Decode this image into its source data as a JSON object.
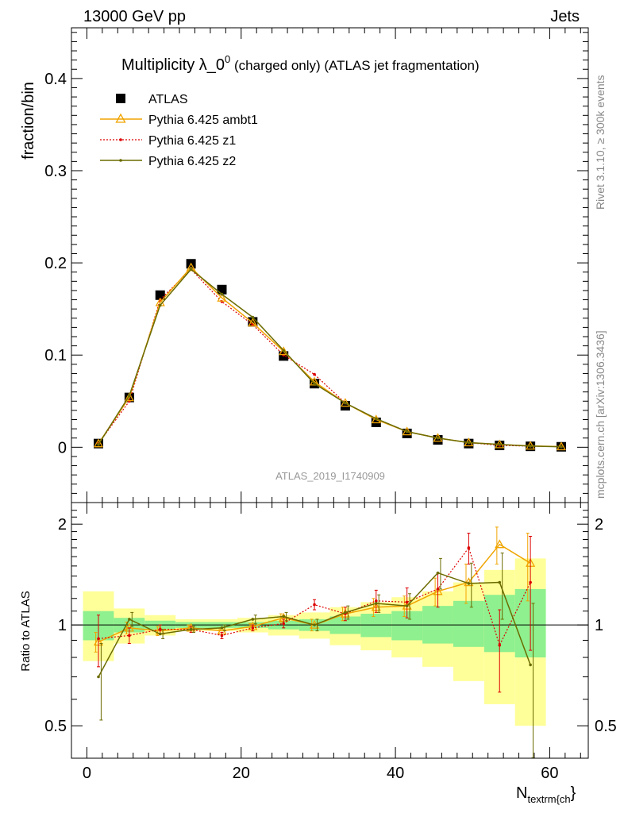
{
  "header": {
    "energy_label": "13000 GeV pp",
    "category_label": "Jets"
  },
  "side_labels": {
    "version": "Rivet 3.1.10, ≥ 300k events",
    "source": "mcplots.cern.ch [arXiv:1306.3436]"
  },
  "watermark": "ATLAS_2019_I1740909",
  "legend": {
    "atlas": "ATLAS",
    "ambt1": "Pythia 6.425 ambt1",
    "z1": "Pythia 6.425 z1",
    "z2": "Pythia 6.425 z2"
  },
  "colors": {
    "atlas": "#000000",
    "ambt1": "#f0a400",
    "z1": "#dd0000",
    "z2": "#6b6b00",
    "band_inner": "#8ef08e",
    "band_outer": "#ffff99"
  },
  "chart_data": [
    {
      "type": "line",
      "title_main": "Multiplicity λ_0",
      "title_sup": "0",
      "title_rest": " (charged only) (ATLAS jet fragmentation)",
      "ylabel": "fraction/bin",
      "xlim": [
        -2,
        65
      ],
      "ylim": [
        -0.06,
        0.455
      ],
      "yticks": [
        0,
        0.1,
        0.2,
        0.3,
        0.4
      ],
      "ytick_labels": [
        "0",
        "0.1",
        "0.2",
        "0.3",
        "0.4"
      ],
      "x": [
        1.5,
        5.5,
        9.5,
        13.5,
        17.5,
        21.5,
        25.5,
        29.5,
        33.5,
        37.5,
        41.5,
        45.5,
        49.5,
        53.5,
        57.5,
        61.5
      ],
      "series": [
        {
          "name": "ATLAS",
          "style": "markers",
          "values": [
            0.004,
            0.054,
            0.165,
            0.199,
            0.171,
            0.136,
            0.099,
            0.069,
            0.045,
            0.027,
            0.015,
            0.008,
            0.004,
            0.002,
            0.001,
            0.0005
          ]
        },
        {
          "name": "Pythia 6.425 ambt1",
          "style": "solid",
          "values": [
            0.004,
            0.054,
            0.157,
            0.195,
            0.162,
            0.135,
            0.104,
            0.071,
            0.048,
            0.03,
            0.017,
            0.01,
            0.005,
            0.003,
            0.0015,
            0.0007
          ]
        },
        {
          "name": "Pythia 6.425 z1",
          "style": "dotted",
          "values": [
            0.004,
            0.05,
            0.16,
            0.193,
            0.158,
            0.133,
            0.1,
            0.079,
            0.048,
            0.031,
            0.017,
            0.01,
            0.005,
            0.002,
            0.0012,
            0.0006
          ]
        },
        {
          "name": "Pythia 6.425 z2",
          "style": "solid",
          "values": [
            0.003,
            0.056,
            0.154,
            0.193,
            0.166,
            0.141,
            0.105,
            0.069,
            0.048,
            0.031,
            0.017,
            0.01,
            0.005,
            0.003,
            0.0012,
            0.0005
          ]
        }
      ]
    },
    {
      "type": "line",
      "ylabel": "Ratio to ATLAS",
      "xlabel_main": "N",
      "xlabel_sub": "textrm{ch",
      "xlabel_end": "}",
      "xlim": [
        -2,
        65
      ],
      "ylim": [
        0.4,
        2.32
      ],
      "xticks": [
        0,
        20,
        40,
        60
      ],
      "xtick_labels": [
        "0",
        "20",
        "40",
        "60"
      ],
      "yticks": [
        0.5,
        1,
        2
      ],
      "ytick_labels": [
        "0.5",
        "1",
        "2"
      ],
      "bin_edges": [
        -0.5,
        3.5,
        7.5,
        11.5,
        15.5,
        19.5,
        23.5,
        27.5,
        31.5,
        35.5,
        39.5,
        43.5,
        47.5,
        51.5,
        55.5,
        59.5
      ],
      "band_inner": [
        [
          0.9,
          1.1
        ],
        [
          0.95,
          1.05
        ],
        [
          0.97,
          1.03
        ],
        [
          0.98,
          1.02
        ],
        [
          0.98,
          1.02
        ],
        [
          0.98,
          1.02
        ],
        [
          0.97,
          1.03
        ],
        [
          0.96,
          1.04
        ],
        [
          0.94,
          1.06
        ],
        [
          0.92,
          1.08
        ],
        [
          0.9,
          1.1
        ],
        [
          0.88,
          1.14
        ],
        [
          0.86,
          1.18
        ],
        [
          0.83,
          1.23
        ],
        [
          0.8,
          1.28
        ]
      ],
      "band_outer": [
        [
          0.78,
          1.26
        ],
        [
          0.88,
          1.12
        ],
        [
          0.93,
          1.07
        ],
        [
          0.96,
          1.04
        ],
        [
          0.96,
          1.04
        ],
        [
          0.95,
          1.05
        ],
        [
          0.93,
          1.07
        ],
        [
          0.91,
          1.09
        ],
        [
          0.87,
          1.13
        ],
        [
          0.84,
          1.17
        ],
        [
          0.8,
          1.21
        ],
        [
          0.75,
          1.26
        ],
        [
          0.68,
          1.34
        ],
        [
          0.58,
          1.46
        ],
        [
          0.5,
          1.58
        ]
      ],
      "x": [
        1.5,
        5.5,
        9.5,
        13.5,
        17.5,
        21.5,
        25.5,
        29.5,
        33.5,
        37.5,
        41.5,
        45.5,
        49.5,
        53.5,
        57.5
      ],
      "series": [
        {
          "name": "Pythia 6.425 ambt1",
          "style": "solid",
          "values": [
            0.89,
            0.98,
            0.96,
            0.98,
            0.96,
            0.99,
            1.05,
            1.0,
            1.08,
            1.13,
            1.14,
            1.26,
            1.34,
            1.74,
            1.53
          ],
          "errors": [
            0.06,
            0.04,
            0.03,
            0.02,
            0.02,
            0.02,
            0.03,
            0.04,
            0.05,
            0.07,
            0.08,
            0.12,
            0.18,
            0.22,
            0.35
          ]
        },
        {
          "name": "Pythia 6.425 z1",
          "style": "dotted",
          "values": [
            0.91,
            0.93,
            0.97,
            0.97,
            0.93,
            0.98,
            1.01,
            1.15,
            1.08,
            1.18,
            1.17,
            1.28,
            1.7,
            0.87,
            1.34
          ],
          "errors": [
            0.16,
            0.05,
            0.03,
            0.02,
            0.02,
            0.02,
            0.03,
            0.04,
            0.05,
            0.09,
            0.12,
            0.15,
            0.18,
            0.24,
            0.5
          ]
        },
        {
          "name": "Pythia 6.425 z2",
          "style": "solid",
          "values": [
            0.7,
            1.04,
            0.94,
            0.97,
            0.98,
            1.04,
            1.06,
            1.0,
            1.09,
            1.16,
            1.14,
            1.43,
            1.33,
            1.34,
            0.76
          ],
          "errors": [
            0.18,
            0.05,
            0.03,
            0.02,
            0.02,
            0.03,
            0.03,
            0.04,
            0.05,
            0.07,
            0.1,
            0.15,
            0.2,
            0.3,
            0.4
          ]
        }
      ]
    }
  ]
}
